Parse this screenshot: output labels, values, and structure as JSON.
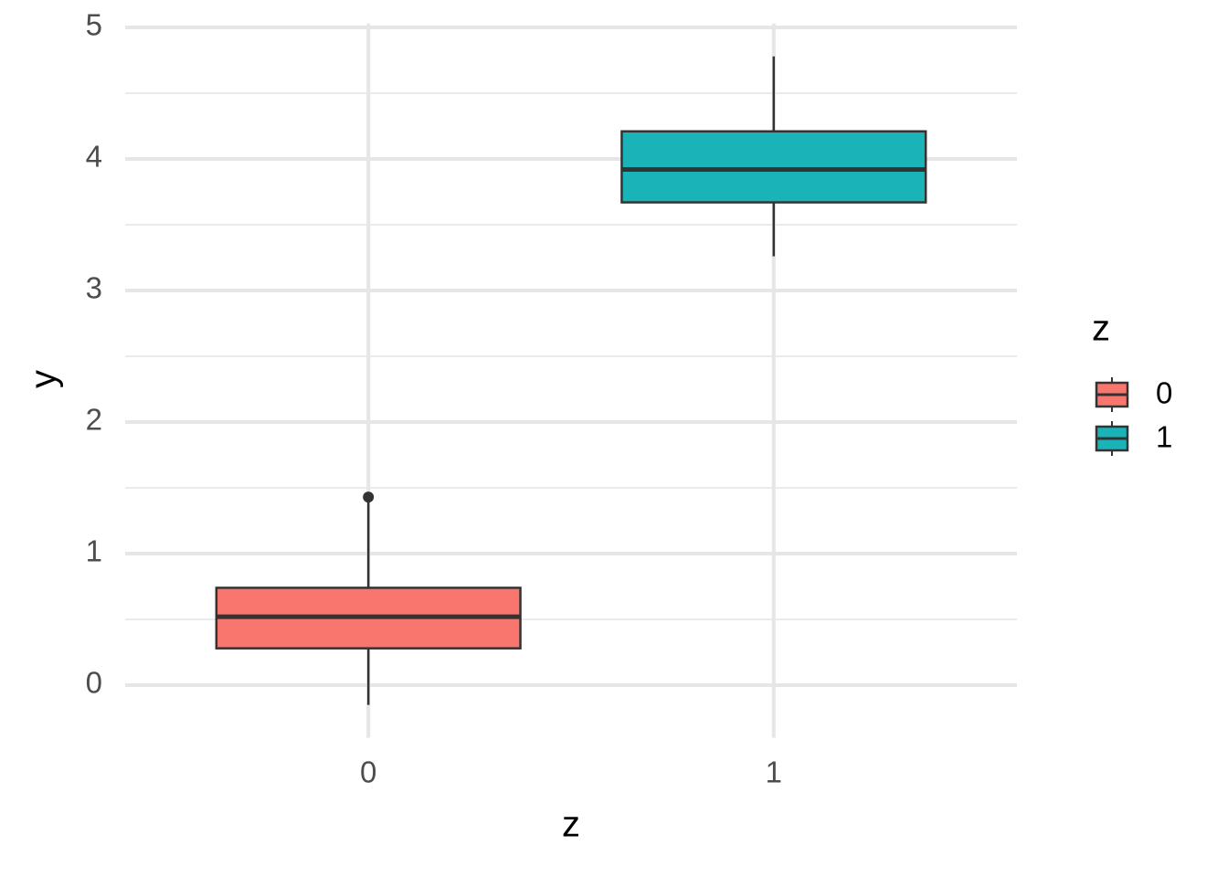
{
  "chart_data": {
    "type": "box",
    "x_label": "z",
    "y_label": "y",
    "categories": [
      "0",
      "1"
    ],
    "legend_title": "z",
    "legend_position": "right",
    "series": [
      {
        "name": "0",
        "color": "#F8766D",
        "whisker_low": -0.15,
        "q1": 0.28,
        "median": 0.52,
        "q3": 0.74,
        "whisker_high": 1.4,
        "outliers": [
          1.43
        ]
      },
      {
        "name": "1",
        "color": "#1AB4B8",
        "whisker_low": 3.26,
        "q1": 3.67,
        "median": 3.92,
        "q3": 4.21,
        "whisker_high": 4.78,
        "outliers": []
      }
    ],
    "ylim": [
      -0.4,
      5.03
    ],
    "yticks": [
      0,
      1,
      2,
      3,
      4,
      5
    ],
    "y_minor_ticks": [
      0.5,
      1.5,
      2.5,
      3.5,
      4.5
    ],
    "grid": true
  }
}
